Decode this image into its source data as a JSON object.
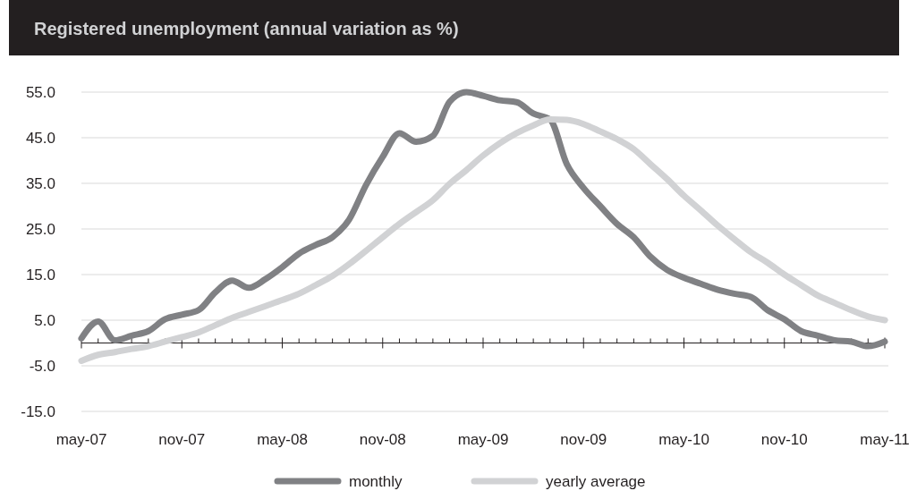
{
  "chart_data": {
    "type": "line",
    "title": "Registered unemployment (annual variation as %)",
    "categories": [
      "may-07",
      null,
      null,
      null,
      null,
      null,
      "nov-07",
      null,
      null,
      null,
      null,
      null,
      "may-08",
      null,
      null,
      null,
      null,
      null,
      "nov-08",
      null,
      null,
      null,
      null,
      null,
      "may-09",
      null,
      null,
      null,
      null,
      null,
      "nov-09",
      null,
      null,
      null,
      null,
      null,
      "may-10",
      null,
      null,
      null,
      null,
      null,
      "nov-10",
      null,
      null,
      null,
      null,
      null,
      "may-11"
    ],
    "series": [
      {
        "name": "monthly",
        "color": "#808184",
        "values": [
          1.0,
          4.7,
          0.6,
          1.6,
          2.6,
          5.2,
          6.2,
          7.2,
          11.1,
          13.7,
          12.1,
          14.0,
          16.6,
          19.6,
          21.5,
          23.2,
          27.1,
          34.6,
          40.8,
          46.0,
          44.1,
          45.4,
          52.9,
          55.0,
          54.2,
          53.2,
          52.8,
          50.3,
          49.0,
          39.2,
          34.0,
          30.0,
          26.1,
          23.2,
          18.9,
          16.0,
          14.3,
          13.0,
          11.7,
          10.8,
          10.1,
          7.2,
          5.2,
          2.6,
          1.6,
          0.6,
          0.3,
          -0.7,
          0.3
        ]
      },
      {
        "name": "yearly average",
        "color": "#d1d2d4",
        "values": [
          -3.9,
          -2.6,
          -2.0,
          -1.3,
          -0.7,
          0.3,
          1.3,
          2.3,
          3.9,
          5.5,
          6.8,
          8.1,
          9.4,
          10.8,
          12.7,
          14.7,
          17.3,
          20.2,
          23.2,
          26.1,
          28.7,
          31.3,
          34.9,
          37.9,
          41.1,
          43.8,
          46.0,
          47.7,
          49.0,
          48.9,
          48.0,
          46.4,
          44.7,
          42.5,
          39.2,
          35.9,
          32.3,
          29.1,
          25.8,
          22.8,
          19.9,
          17.6,
          15.0,
          12.7,
          10.4,
          8.8,
          7.2,
          5.8,
          5.0
        ]
      }
    ],
    "ylim": [
      -15,
      55
    ],
    "yticks": [
      {
        "value": -15,
        "label": "-15.0"
      },
      {
        "value": -5,
        "label": "-5.0"
      },
      {
        "value": 5,
        "label": "5.0"
      },
      {
        "value": 15,
        "label": "15.0"
      },
      {
        "value": 25,
        "label": "25.0"
      },
      {
        "value": 35,
        "label": "35.0"
      },
      {
        "value": 45,
        "label": "45.0"
      },
      {
        "value": 55,
        "label": "55.0"
      }
    ],
    "grid": "y",
    "legend": "bottom",
    "marker": "none",
    "line_style": "solid"
  }
}
